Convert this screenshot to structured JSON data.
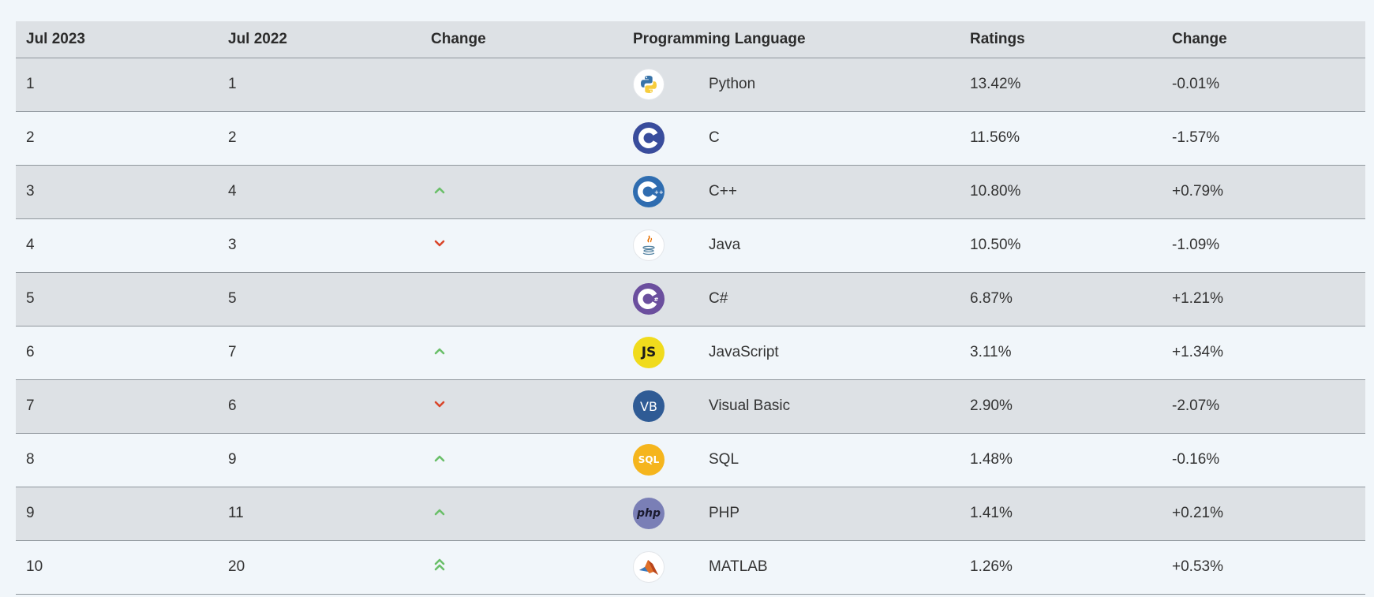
{
  "table": {
    "headers": [
      "Jul 2023",
      "Jul 2022",
      "Change",
      "Programming Language",
      "Ratings",
      "Change"
    ],
    "rows": [
      {
        "rank_2023": "1",
        "rank_2022": "1",
        "trend": "none",
        "icon": "python-logo-icon",
        "language": "Python",
        "rating": "13.42%",
        "change": "-0.01%"
      },
      {
        "rank_2023": "2",
        "rank_2022": "2",
        "trend": "none",
        "icon": "c-logo-icon",
        "language": "C",
        "rating": "11.56%",
        "change": "-1.57%"
      },
      {
        "rank_2023": "3",
        "rank_2022": "4",
        "trend": "up",
        "icon": "cpp-logo-icon",
        "language": "C++",
        "rating": "10.80%",
        "change": "+0.79%"
      },
      {
        "rank_2023": "4",
        "rank_2022": "3",
        "trend": "down",
        "icon": "java-logo-icon",
        "language": "Java",
        "rating": "10.50%",
        "change": "-1.09%"
      },
      {
        "rank_2023": "5",
        "rank_2022": "5",
        "trend": "none",
        "icon": "csharp-logo-icon",
        "language": "C#",
        "rating": "6.87%",
        "change": "+1.21%"
      },
      {
        "rank_2023": "6",
        "rank_2022": "7",
        "trend": "up",
        "icon": "javascript-logo-icon",
        "language": "JavaScript",
        "rating": "3.11%",
        "change": "+1.34%"
      },
      {
        "rank_2023": "7",
        "rank_2022": "6",
        "trend": "down",
        "icon": "visual-basic-logo-icon",
        "language": "Visual Basic",
        "rating": "2.90%",
        "change": "-2.07%"
      },
      {
        "rank_2023": "8",
        "rank_2022": "9",
        "trend": "up",
        "icon": "sql-logo-icon",
        "language": "SQL",
        "rating": "1.48%",
        "change": "-0.16%"
      },
      {
        "rank_2023": "9",
        "rank_2022": "11",
        "trend": "up",
        "icon": "php-logo-icon",
        "language": "PHP",
        "rating": "1.41%",
        "change": "+0.21%"
      },
      {
        "rank_2023": "10",
        "rank_2022": "20",
        "trend": "double-up",
        "icon": "matlab-logo-icon",
        "language": "MATLAB",
        "rating": "1.26%",
        "change": "+0.53%"
      }
    ]
  },
  "logo_text": {
    "javascript": "JS",
    "visual_basic": "VB",
    "sql": "SQL",
    "php": "php"
  },
  "colors": {
    "row_shaded": "#dde1e5",
    "row_plain": "#f1f6fa",
    "arrow_up": "#6abf69",
    "arrow_down": "#d9462b",
    "divider": "#8f969c"
  }
}
